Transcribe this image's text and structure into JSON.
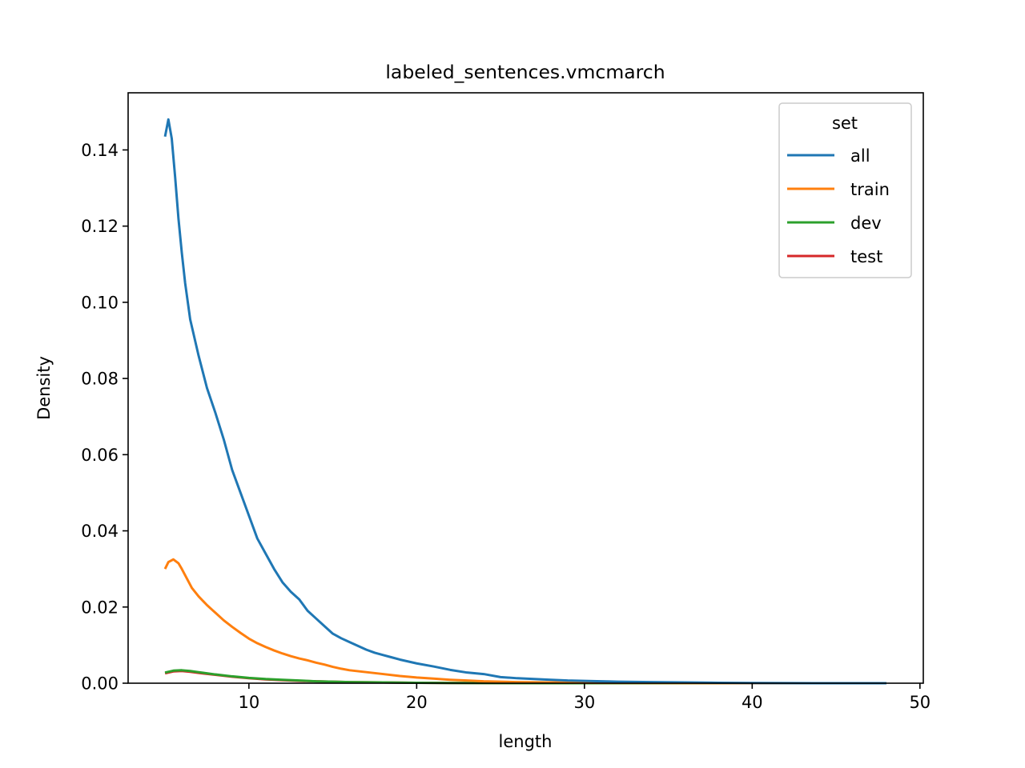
{
  "chart_data": {
    "type": "line",
    "title": "labeled_sentences.vmcmarch",
    "xlabel": "length",
    "ylabel": "Density",
    "xlim": [
      2.8,
      50.2
    ],
    "ylim": [
      0,
      0.155
    ],
    "x_ticks": [
      10,
      20,
      30,
      40,
      50
    ],
    "x_tick_labels": [
      "10",
      "20",
      "30",
      "40",
      "50"
    ],
    "y_ticks": [
      0,
      0.02,
      0.04,
      0.06,
      0.08,
      0.1,
      0.12,
      0.14
    ],
    "y_tick_labels": [
      "0.00",
      "0.02",
      "0.04",
      "0.06",
      "0.08",
      "0.10",
      "0.12",
      "0.14"
    ],
    "grid": false,
    "legend": {
      "title": "set",
      "placement": "top-right"
    },
    "series": [
      {
        "name": "all",
        "color": "#1f77b4",
        "x": [
          5.0,
          5.2,
          5.4,
          5.6,
          5.8,
          6.0,
          6.2,
          6.5,
          7.0,
          7.5,
          8.0,
          8.5,
          9.0,
          9.5,
          10.0,
          10.5,
          11.0,
          11.5,
          12.0,
          12.5,
          13.0,
          13.5,
          14.0,
          14.5,
          15.0,
          15.5,
          16.0,
          16.5,
          17.0,
          17.5,
          18.0,
          18.5,
          19.0,
          19.5,
          20.0,
          21.0,
          22.0,
          23.0,
          24.0,
          25.0,
          26.0,
          27.0,
          28.0,
          29.0,
          30.0,
          31.0,
          32.0,
          34.0,
          36.0,
          38.0,
          40.0,
          44.0,
          48.0
        ],
        "values": [
          0.1435,
          0.148,
          0.143,
          0.133,
          0.122,
          0.113,
          0.105,
          0.0955,
          0.086,
          0.0775,
          0.071,
          0.064,
          0.056,
          0.05,
          0.044,
          0.038,
          0.034,
          0.03,
          0.0265,
          0.024,
          0.022,
          0.019,
          0.017,
          0.015,
          0.013,
          0.0118,
          0.0108,
          0.0098,
          0.0088,
          0.008,
          0.0074,
          0.0068,
          0.0062,
          0.0057,
          0.0052,
          0.0044,
          0.0035,
          0.0028,
          0.0024,
          0.0016,
          0.0013,
          0.0011,
          0.0009,
          0.0007,
          0.0006,
          0.0005,
          0.0004,
          0.0003,
          0.0002,
          0.0001,
          5e-05,
          0.0,
          0.0
        ]
      },
      {
        "name": "train",
        "color": "#ff7f0e",
        "x": [
          5.0,
          5.2,
          5.5,
          5.8,
          6.0,
          6.3,
          6.6,
          7.0,
          7.5,
          8.0,
          8.5,
          9.0,
          9.5,
          10.0,
          10.5,
          11.0,
          11.5,
          12.0,
          12.5,
          13.0,
          13.5,
          14.0,
          14.5,
          15.0,
          15.5,
          16.0,
          17.0,
          18.0,
          19.0,
          20.0,
          21.0,
          22.0,
          23.0,
          24.0,
          25.0,
          26.0,
          28.0,
          30.0,
          35.0,
          40.0,
          48.0
        ],
        "values": [
          0.03,
          0.0318,
          0.0325,
          0.0315,
          0.03,
          0.0275,
          0.025,
          0.0228,
          0.0205,
          0.0185,
          0.0165,
          0.0148,
          0.0132,
          0.0117,
          0.0105,
          0.0095,
          0.0086,
          0.0078,
          0.0071,
          0.0065,
          0.006,
          0.0054,
          0.0049,
          0.0043,
          0.0038,
          0.0034,
          0.0029,
          0.0024,
          0.0019,
          0.0015,
          0.0012,
          0.0009,
          0.0007,
          0.0005,
          0.0004,
          0.0003,
          0.0002,
          0.0001,
          4e-05,
          1e-05,
          0.0
        ]
      },
      {
        "name": "dev",
        "color": "#2ca02c",
        "x": [
          5.0,
          5.5,
          6.0,
          6.5,
          7.0,
          8.0,
          9.0,
          10.0,
          11.0,
          12.0,
          13.0,
          14.0,
          15.0,
          16.0,
          18.0,
          20.0,
          22.0,
          25.0,
          30.0,
          40.0,
          48.0
        ],
        "values": [
          0.0028,
          0.0033,
          0.0034,
          0.0032,
          0.0029,
          0.0023,
          0.0018,
          0.0014,
          0.0011,
          0.0009,
          0.0007,
          0.0005,
          0.0004,
          0.0003,
          0.0002,
          0.0001,
          5e-05,
          2e-05,
          0.0,
          0.0,
          0.0
        ]
      },
      {
        "name": "test",
        "color": "#d62728",
        "x": [
          5.0,
          5.5,
          6.0,
          6.5,
          7.0,
          8.0,
          9.0,
          10.0,
          11.0,
          12.0,
          13.0,
          14.0,
          15.0,
          16.0,
          18.0,
          20.0,
          22.0,
          25.0,
          30.0,
          40.0,
          48.0
        ],
        "values": [
          0.0026,
          0.0031,
          0.0032,
          0.003,
          0.0027,
          0.0022,
          0.0017,
          0.0013,
          0.001,
          0.0008,
          0.0006,
          0.0005,
          0.0004,
          0.0003,
          0.0002,
          0.0001,
          5e-05,
          2e-05,
          0.0,
          0.0,
          0.0
        ]
      }
    ]
  }
}
